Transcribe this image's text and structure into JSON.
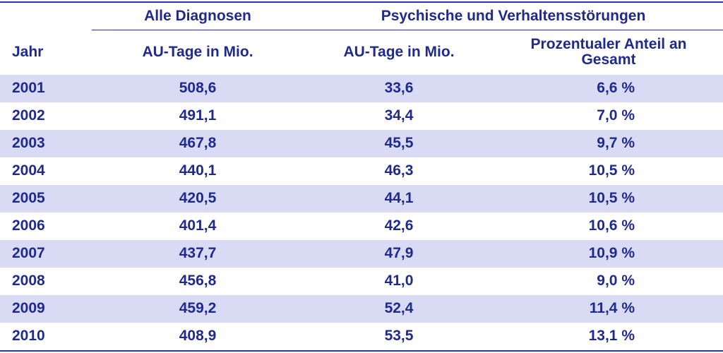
{
  "header": {
    "group_all": "Alle Diagnosen",
    "group_psych": "Psychische und Verhaltensstörungen",
    "col_year": "Jahr",
    "col_all_days": "AU-Tage in Mio.",
    "col_psych_days": "AU-Tage in Mio.",
    "col_share": "Prozentualer Anteil an\nGesamt"
  },
  "chart_data": {
    "type": "table",
    "columns": [
      "Jahr",
      "AU-Tage in Mio.",
      "AU-Tage in Mio.",
      "Prozentualer Anteil an Gesamt"
    ],
    "column_groups": [
      {
        "name": "Alle Diagnosen",
        "columns": [
          "AU-Tage in Mio."
        ]
      },
      {
        "name": "Psychische und Verhaltensstörungen",
        "columns": [
          "AU-Tage in Mio.",
          "Prozentualer Anteil an Gesamt"
        ]
      }
    ],
    "rows": [
      [
        "2001",
        "508,6",
        "33,6",
        "6,6 %"
      ],
      [
        "2002",
        "491,1",
        "34,4",
        "7,0 %"
      ],
      [
        "2003",
        "467,8",
        "45,5",
        "9,7 %"
      ],
      [
        "2004",
        "440,1",
        "46,3",
        "10,5 %"
      ],
      [
        "2005",
        "420,5",
        "44,1",
        "10,5 %"
      ],
      [
        "2006",
        "401,4",
        "42,6",
        "10,6 %"
      ],
      [
        "2007",
        "437,7",
        "47,9",
        "10,9 %"
      ],
      [
        "2008",
        "456,8",
        "41,0",
        "9,0 %"
      ],
      [
        "2009",
        "459,2",
        "52,4",
        "11,4 %"
      ],
      [
        "2010",
        "408,9",
        "53,5",
        "13,1 %"
      ]
    ]
  },
  "colors": {
    "text": "#1f2a8c",
    "row_shade": "#d9daf4",
    "rule": "#2a35a5"
  }
}
